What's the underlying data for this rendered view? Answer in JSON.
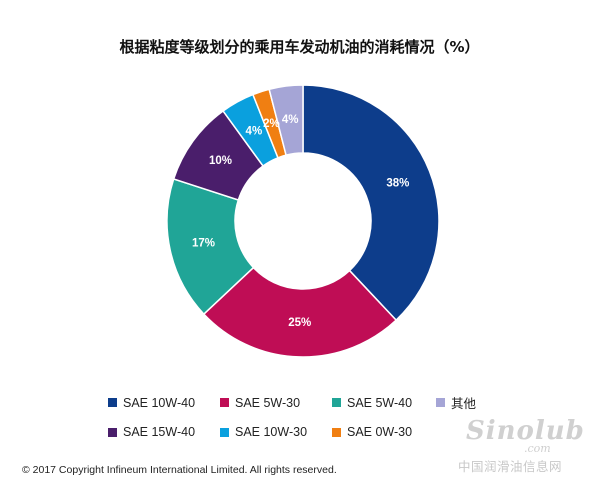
{
  "chart_data": {
    "type": "pie",
    "title": "根据粘度等级划分的乘用车发动机油的消耗情况（%）",
    "value_suffix": "%",
    "legend_position": "bottom",
    "slices": [
      {
        "name": "SAE 10W-40",
        "value": 38,
        "color": "#0d3d8b"
      },
      {
        "name": "SAE 5W-30",
        "value": 25,
        "color": "#bf0d55"
      },
      {
        "name": "SAE 5W-40",
        "value": 17,
        "color": "#20a597"
      },
      {
        "name": "SAE 15W-40",
        "value": 10,
        "color": "#4a1e6b"
      },
      {
        "name": "SAE 10W-30",
        "value": 4,
        "color": "#0aa0de"
      },
      {
        "name": "SAE 0W-30",
        "value": 2,
        "color": "#f07f12"
      },
      {
        "name": "其他",
        "value": 4,
        "color": "#a5a5d6"
      }
    ],
    "legend_order": [
      0,
      1,
      2,
      6,
      3,
      4,
      5
    ]
  },
  "copyright": "© 2017 Copyright Infineum International Limited. All rights reserved.",
  "watermark": {
    "main": "Sinolub",
    "sub": ".com",
    "cn": "中国润滑油信息网"
  }
}
